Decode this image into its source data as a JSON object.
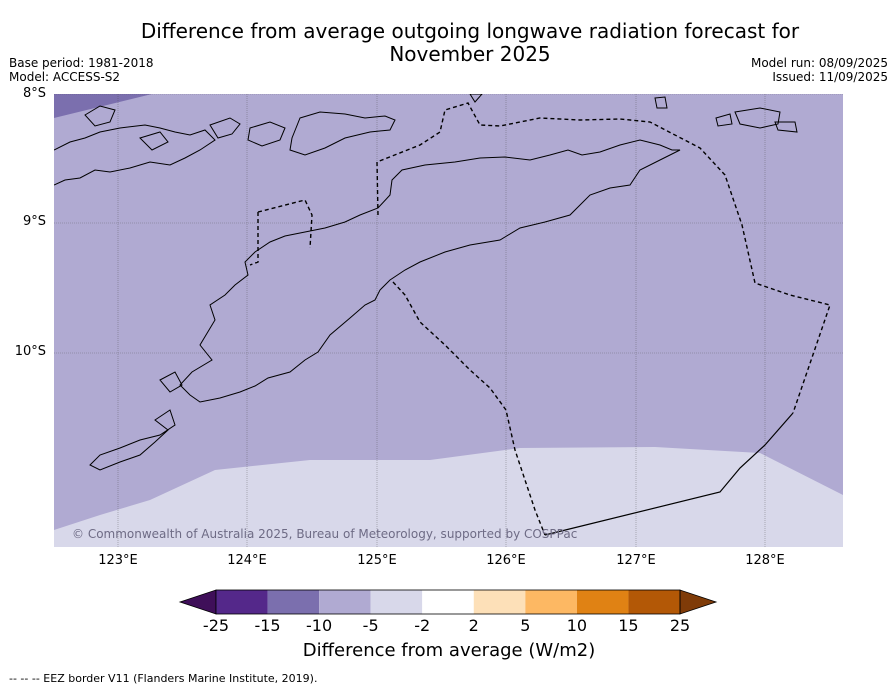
{
  "header": {
    "title_line1": "Difference from average outgoing longwave radiation forecast for",
    "title_line2": "November 2025",
    "base_period": "Base period: 1981-2018",
    "model": "Model: ACCESS-S2",
    "model_run": "Model run: 08/09/2025",
    "issued": "Issued: 11/09/2025"
  },
  "map": {
    "lat_labels": [
      "8°S",
      "9°S",
      "10°S"
    ],
    "lon_labels": [
      "123°E",
      "124°E",
      "125°E",
      "126°E",
      "127°E",
      "128°E"
    ],
    "copyright": "© Commonwealth of Australia 2025, Bureau of Meteorology, supported by COSPPac",
    "field_colors": {
      "dark": "#7b6fae",
      "mid": "#b0aad2",
      "light": "#d8d8ea"
    }
  },
  "colorbar": {
    "tick_labels": [
      "-25",
      "-15",
      "-10",
      "-5",
      "-2",
      "2",
      "5",
      "10",
      "15",
      "25"
    ],
    "colors": [
      "#3f0f59",
      "#54288a",
      "#7b6fae",
      "#b0aad2",
      "#d8d8ea",
      "#ffffff",
      "#fde0b8",
      "#fdb863",
      "#e08214",
      "#b35806",
      "#7f3b08"
    ],
    "title": "Difference from average (W/m2)"
  },
  "footnote": "--  --  -- EEZ border V11 (Flanders Marine Institute, 2019)."
}
